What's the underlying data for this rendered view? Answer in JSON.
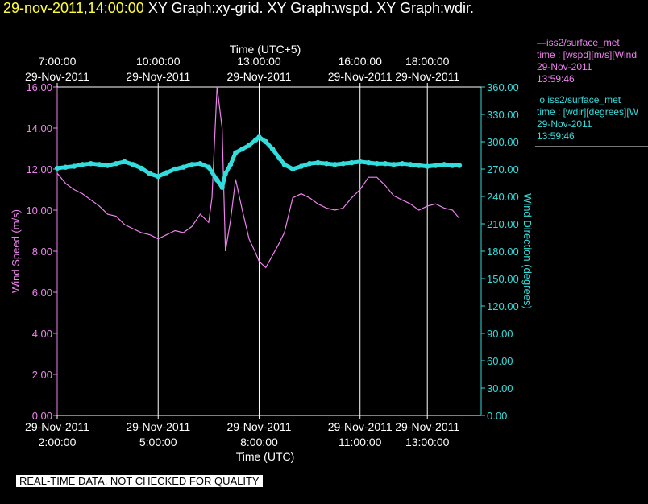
{
  "header": {
    "timestamp": "29-nov-2011,14:00:00",
    "graphs": "XY Graph:xy-grid.  XY Graph:wspd.  XY Graph:wdir."
  },
  "legend": {
    "wspd": {
      "marker": "—",
      "source": "iss2/surface_met",
      "var": "time : [wspd][m/s][Wind",
      "date": "29-Nov-2011",
      "time": "13:59:46"
    },
    "wdir": {
      "marker": "o",
      "source": "iss2/surface_met",
      "var": "time : [wdir][degrees][W",
      "date": "29-Nov-2011",
      "time": "13:59:46"
    }
  },
  "disclaimer": "REAL-TIME DATA, NOT CHECKED FOR QUALITY",
  "colors": {
    "wspd": "#ee82ee",
    "wdir": "#33dddd",
    "grid": "#ffffff",
    "background": "#000000"
  },
  "chart_data": {
    "type": "line",
    "xlabel_bottom": "Time (UTC)",
    "xlabel_top": "Time (UTC+5)",
    "ylabel_left": "Wind Speed (m/s)",
    "ylabel_right": "Wind Direction (degrees)",
    "xlim_hours_utc": [
      2.0,
      14.6
    ],
    "ylim_left": [
      0,
      16
    ],
    "ylim_right": [
      0,
      360
    ],
    "yticks_left": [
      "0.00",
      "2.00",
      "4.00",
      "6.00",
      "8.00",
      "10.00",
      "12.00",
      "14.00",
      "16.00"
    ],
    "yticks_right": [
      "0.00",
      "30.00",
      "60.00",
      "90.00",
      "120.00",
      "150.00",
      "180.00",
      "210.00",
      "240.00",
      "270.00",
      "300.00",
      "330.00",
      "360.00"
    ],
    "xticks_bottom": [
      {
        "hour": 2,
        "date": "29-Nov-2011",
        "time": "2:00:00"
      },
      {
        "hour": 5,
        "date": "29-Nov-2011",
        "time": "5:00:00"
      },
      {
        "hour": 8,
        "date": "29-Nov-2011",
        "time": "8:00:00"
      },
      {
        "hour": 11,
        "date": "29-Nov-2011",
        "time": "11:00:00"
      },
      {
        "hour": 13,
        "date": "29-Nov-2011",
        "time": "13:00:00"
      }
    ],
    "xticks_top": [
      {
        "hour": 2,
        "date": "29-Nov-2011",
        "time": "7:00:00"
      },
      {
        "hour": 5,
        "date": "29-Nov-2011",
        "time": "10:00:00"
      },
      {
        "hour": 8,
        "date": "29-Nov-2011",
        "time": "13:00:00"
      },
      {
        "hour": 11,
        "date": "29-Nov-2011",
        "time": "16:00:00"
      },
      {
        "hour": 13,
        "date": "29-Nov-2011",
        "time": "18:00:00"
      }
    ],
    "grid": true,
    "series": [
      {
        "key": "wspd",
        "axis": "left",
        "style": "line",
        "x": [
          2.0,
          2.25,
          2.5,
          2.75,
          3.0,
          3.25,
          3.5,
          3.75,
          4.0,
          4.25,
          4.5,
          4.75,
          5.0,
          5.25,
          5.5,
          5.75,
          6.0,
          6.25,
          6.5,
          6.6,
          6.75,
          6.9,
          7.0,
          7.15,
          7.3,
          7.5,
          7.7,
          7.9,
          8.0,
          8.2,
          8.4,
          8.6,
          8.75,
          9.0,
          9.25,
          9.5,
          9.75,
          10.0,
          10.25,
          10.5,
          10.75,
          11.0,
          11.25,
          11.5,
          11.75,
          12.0,
          12.25,
          12.5,
          12.75,
          13.0,
          13.25,
          13.5,
          13.75,
          13.95
        ],
        "y": [
          11.8,
          11.3,
          11.0,
          10.8,
          10.5,
          10.2,
          9.8,
          9.7,
          9.3,
          9.1,
          8.9,
          8.8,
          8.6,
          8.8,
          9.0,
          8.9,
          9.2,
          9.8,
          9.4,
          10.6,
          16.0,
          14.0,
          8.0,
          9.5,
          11.5,
          10.0,
          8.6,
          7.9,
          7.5,
          7.2,
          7.8,
          8.4,
          8.9,
          10.6,
          10.8,
          10.6,
          10.3,
          10.1,
          10.0,
          10.1,
          10.6,
          11.0,
          11.6,
          11.6,
          11.2,
          10.7,
          10.5,
          10.3,
          10.0,
          10.2,
          10.3,
          10.1,
          10.0,
          9.6
        ]
      },
      {
        "key": "wdir",
        "axis": "right",
        "style": "markers",
        "x": [
          2.0,
          2.25,
          2.5,
          2.75,
          3.0,
          3.25,
          3.5,
          3.75,
          4.0,
          4.25,
          4.5,
          4.75,
          5.0,
          5.25,
          5.5,
          5.75,
          6.0,
          6.25,
          6.5,
          6.75,
          6.9,
          7.0,
          7.15,
          7.3,
          7.5,
          7.7,
          7.9,
          8.0,
          8.2,
          8.4,
          8.6,
          8.75,
          9.0,
          9.25,
          9.5,
          9.75,
          10.0,
          10.25,
          10.5,
          10.75,
          11.0,
          11.25,
          11.5,
          11.75,
          12.0,
          12.25,
          12.5,
          12.75,
          13.0,
          13.25,
          13.5,
          13.75,
          13.95
        ],
        "y": [
          271,
          272,
          273,
          275,
          276,
          275,
          274,
          276,
          278,
          275,
          271,
          265,
          262,
          266,
          270,
          272,
          275,
          276,
          272,
          258,
          250,
          265,
          275,
          288,
          292,
          296,
          302,
          305,
          300,
          292,
          282,
          275,
          270,
          273,
          276,
          277,
          276,
          275,
          276,
          277,
          278,
          277,
          276,
          276,
          275,
          276,
          275,
          274,
          273,
          274,
          275,
          274,
          274
        ]
      }
    ]
  }
}
